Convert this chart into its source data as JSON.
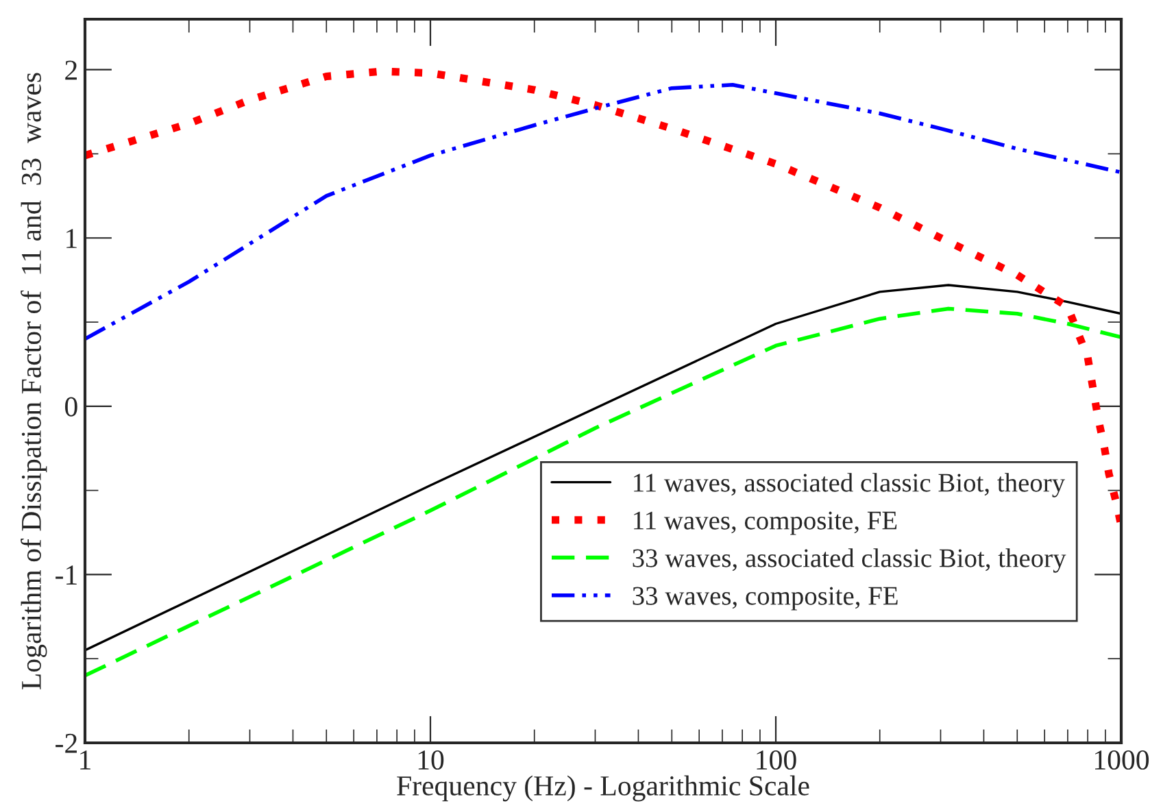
{
  "chart_data": {
    "type": "line",
    "xlabel": "Frequency (Hz) - Logarithmic Scale",
    "ylabel": "Logarithm of Dissipation Factor of  11 and  33  waves",
    "log": "x",
    "xlim": [
      1,
      1000
    ],
    "xticks": [
      1,
      10,
      100,
      1000
    ],
    "ylim": [
      -2,
      2.3
    ],
    "yticks": [
      -2,
      -1,
      0,
      1,
      2
    ],
    "grid": false,
    "legend": "bottom right",
    "series": [
      {
        "name": "11 waves, associated classic Biot, theory",
        "color": "#000000",
        "line_style": "solid",
        "x": [
          1,
          10,
          100,
          200,
          316,
          500,
          700,
          1000
        ],
        "values": [
          -1.45,
          -0.47,
          0.49,
          0.68,
          0.72,
          0.68,
          0.62,
          0.55
        ]
      },
      {
        "name": "11 waves, composite, FE",
        "color": "#ff0000",
        "line_style": "dotted",
        "x": [
          1,
          2,
          3,
          5,
          7.2,
          10,
          20,
          30,
          50,
          100,
          200,
          300,
          500,
          700,
          800,
          857,
          893,
          921,
          964,
          1000
        ],
        "values": [
          1.49,
          1.68,
          1.82,
          1.96,
          1.99,
          1.98,
          1.88,
          1.79,
          1.65,
          1.44,
          1.18,
          1.0,
          0.78,
          0.59,
          0.29,
          -0.07,
          -0.24,
          -0.4,
          -0.56,
          -0.71
        ]
      },
      {
        "name": "33 waves, associated classic Biot, theory",
        "color": "#00ff00",
        "line_style": "dashed",
        "x": [
          1,
          10,
          30,
          100,
          200,
          316,
          500,
          700,
          1000
        ],
        "values": [
          -1.6,
          -0.62,
          -0.13,
          0.36,
          0.52,
          0.58,
          0.55,
          0.49,
          0.41
        ]
      },
      {
        "name": "33 waves, composite, FE",
        "color": "#0000ff",
        "line_style": "dashdot",
        "x": [
          1,
          2,
          5,
          10,
          20,
          30,
          50,
          75,
          100,
          200,
          300,
          500,
          1000
        ],
        "values": [
          0.4,
          0.74,
          1.25,
          1.49,
          1.67,
          1.77,
          1.89,
          1.91,
          1.86,
          1.74,
          1.65,
          1.53,
          1.39
        ]
      }
    ]
  }
}
